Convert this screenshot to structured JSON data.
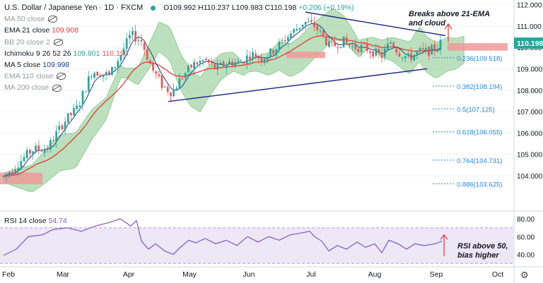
{
  "legend": {
    "symbol": "U.S. Dollar / Japanese Yen · 1D · FXCM",
    "open": "O109.992",
    "high": "H110.237",
    "low": "L109.983",
    "close": "C110.198",
    "change": "+0.206 (+0.19%)",
    "ma50": "MA 50 close",
    "ema21_label": "EMA 21 close",
    "ema21_value": "109.908",
    "bb": "BB 20 close 2",
    "ichi_label": "Ichimoku 9 26 52 26",
    "ichi_v1": "109.801",
    "ichi_v2": "110.190",
    "ma5_label": "MA 5 close",
    "ma5_value": "109.998",
    "ema110": "EMA 110 close",
    "ma200": "MA 200 close"
  },
  "rsi_legend": {
    "label": "RSI 14 close",
    "value": "54.74"
  },
  "annotations": {
    "top_line1": "Breaks above 21-EMA",
    "top_line2": "and cloud",
    "rsi_line1": "RSI above 50,",
    "rsi_line2": "bias higher"
  },
  "colors": {
    "up": "#26a69a",
    "down": "#ef5350",
    "ema21": "#e53935",
    "ma5": "#1e3a8a",
    "cloud_bull": "#a5d6a7",
    "cloud_bear": "#ef9a9a",
    "rsi_line": "#7e57c2",
    "rsi_band": "#ede7f6",
    "trend": "#1a237e",
    "fib": "#1e88e5"
  },
  "chart_data": {
    "type": "candlestick",
    "symbol": "USDJPY",
    "timeframe": "1D",
    "last_price": "110.198",
    "y_axis": {
      "ticks": [
        "112.000",
        "111.000",
        "110.000",
        "109.000",
        "108.000",
        "107.000",
        "106.000",
        "105.000",
        "104.000"
      ],
      "range": [
        102.45,
        112.15
      ]
    },
    "x_axis": {
      "ticks": [
        "Feb",
        "Mar",
        "Apr",
        "May",
        "Jun",
        "Jul",
        "Aug",
        "Sep",
        "Oct"
      ]
    },
    "fib_levels": [
      {
        "label": "0.236(109.518)",
        "value": 109.518
      },
      {
        "label": "0.382(108.194)",
        "value": 108.194
      },
      {
        "label": "0.5(107.125)",
        "value": 107.125
      },
      {
        "label": "0.618(106.055)",
        "value": 106.055
      },
      {
        "label": "0.764(104.731)",
        "value": 104.731
      },
      {
        "label": "0.886(103.625)",
        "value": 103.625
      }
    ],
    "rsi": {
      "ticks": [
        "80.00",
        "60.00",
        "40.00"
      ],
      "range": [
        27,
        88
      ],
      "band": [
        30,
        70
      ],
      "points": [
        [
          0,
          39
        ],
        [
          18,
          46
        ],
        [
          35,
          60
        ],
        [
          55,
          62
        ],
        [
          70,
          68
        ],
        [
          90,
          70
        ],
        [
          110,
          66
        ],
        [
          130,
          72
        ],
        [
          150,
          76
        ],
        [
          165,
          80
        ],
        [
          180,
          72
        ],
        [
          188,
          78
        ],
        [
          195,
          55
        ],
        [
          205,
          46
        ],
        [
          215,
          52
        ],
        [
          228,
          44
        ],
        [
          240,
          40
        ],
        [
          250,
          48
        ],
        [
          262,
          56
        ],
        [
          272,
          53
        ],
        [
          285,
          58
        ],
        [
          300,
          52
        ],
        [
          315,
          56
        ],
        [
          330,
          50
        ],
        [
          345,
          60
        ],
        [
          360,
          54
        ],
        [
          375,
          60
        ],
        [
          390,
          56
        ],
        [
          405,
          62
        ],
        [
          420,
          64
        ],
        [
          433,
          66
        ],
        [
          440,
          60
        ],
        [
          450,
          55
        ],
        [
          460,
          44
        ],
        [
          472,
          50
        ],
        [
          485,
          46
        ],
        [
          500,
          54
        ],
        [
          512,
          48
        ],
        [
          525,
          52
        ],
        [
          535,
          42
        ],
        [
          545,
          56
        ],
        [
          558,
          52
        ],
        [
          570,
          46
        ],
        [
          582,
          52
        ],
        [
          595,
          50
        ],
        [
          610,
          52
        ],
        [
          620,
          55
        ]
      ]
    },
    "trendlines": [
      {
        "from": [
          "2021-04-20",
          107.47
        ],
        "to": [
          "2021-08-31",
          109.0
        ]
      },
      {
        "from": [
          "2021-07-01",
          111.65
        ],
        "to": [
          "2021-09-03",
          110.55
        ]
      }
    ]
  }
}
